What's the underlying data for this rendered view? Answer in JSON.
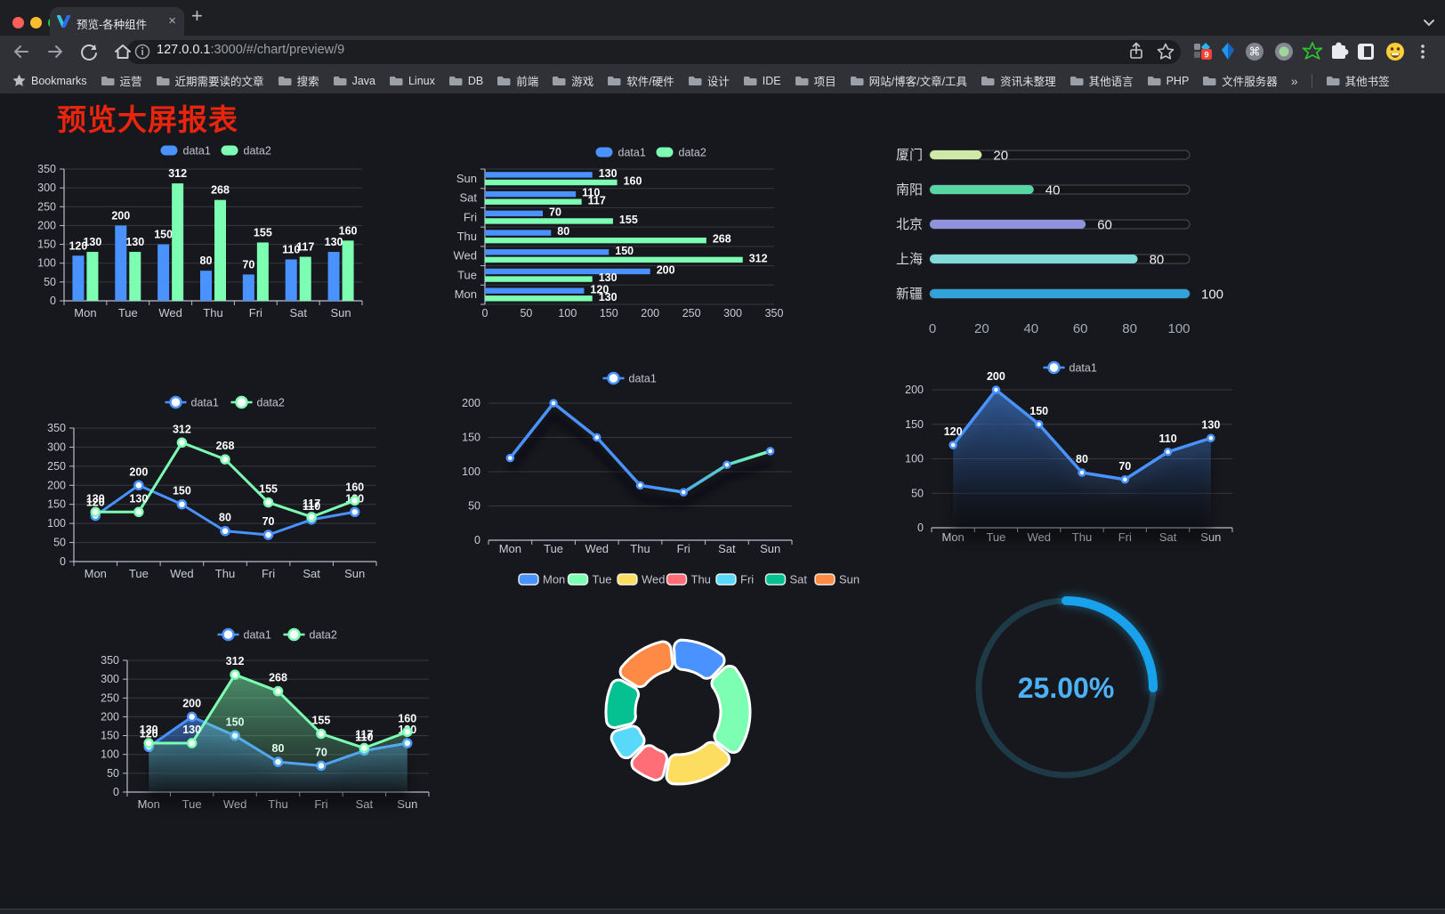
{
  "browser": {
    "tab": {
      "title": "预览-各种组件",
      "close_label": "×"
    },
    "new_tab_label": "+",
    "url": {
      "host": "127.0.0.1",
      "rest": ":3000/#/chart/preview/9"
    },
    "extension_badge": "9",
    "bookmarks_bar": {
      "star_label": "Bookmarks",
      "folders": [
        "运营",
        "近期需要读的文章",
        "搜索",
        "Java",
        "Linux",
        "DB",
        "前端",
        "游戏",
        "软件/硬件",
        "设计",
        "IDE",
        "项目",
        "网站/博客/文章/工具",
        "资讯未整理",
        "其他语言",
        "PHP",
        "文件服务器"
      ],
      "overflow": "»",
      "other": "其他书签"
    }
  },
  "page": {
    "title": "预览大屏报表",
    "title_color": "#e9250e"
  },
  "chart_data": [
    {
      "id": "grouped-bar",
      "type": "bar",
      "categories": [
        "Mon",
        "Tue",
        "Wed",
        "Thu",
        "Fri",
        "Sat",
        "Sun"
      ],
      "series": [
        {
          "name": "data1",
          "color": "#4992ff",
          "values": [
            120,
            200,
            150,
            80,
            70,
            110,
            130
          ]
        },
        {
          "name": "data2",
          "color": "#7cffb2",
          "values": [
            130,
            130,
            312,
            268,
            155,
            117,
            160
          ]
        }
      ],
      "ylim": [
        0,
        350
      ],
      "ytick": 50,
      "legend_position": "top",
      "grid": true
    },
    {
      "id": "horizontal-bar",
      "type": "bar-horizontal",
      "categories": [
        "Mon",
        "Tue",
        "Wed",
        "Thu",
        "Fri",
        "Sat",
        "Sun"
      ],
      "series": [
        {
          "name": "data1",
          "color": "#4992ff",
          "values": [
            120,
            200,
            150,
            80,
            70,
            110,
            130
          ]
        },
        {
          "name": "data2",
          "color": "#7cffb2",
          "values": [
            130,
            130,
            312,
            268,
            155,
            117,
            160
          ]
        }
      ],
      "xlim": [
        0,
        350
      ],
      "xtick": 50
    },
    {
      "id": "capsule-progress",
      "type": "bar-capsule",
      "categories": [
        "厦门",
        "南阳",
        "北京",
        "上海",
        "新疆"
      ],
      "values": [
        20,
        40,
        60,
        80,
        100
      ],
      "colors": [
        "#cde9a5",
        "#57d5a3",
        "#8f92dd",
        "#7fdcd9",
        "#30a3da"
      ],
      "xlim": [
        0,
        100
      ],
      "xticks": [
        0,
        20,
        40,
        60,
        80,
        100
      ]
    },
    {
      "id": "line-two-series",
      "type": "line",
      "categories": [
        "Mon",
        "Tue",
        "Wed",
        "Thu",
        "Fri",
        "Sat",
        "Sun"
      ],
      "series": [
        {
          "name": "data1",
          "color": "#4992ff",
          "values": [
            120,
            200,
            150,
            80,
            70,
            110,
            130
          ]
        },
        {
          "name": "data2",
          "color": "#7cffb2",
          "values": [
            130,
            130,
            312,
            268,
            155,
            117,
            160
          ]
        }
      ],
      "ylim": [
        0,
        350
      ],
      "ytick": 50,
      "labels": true
    },
    {
      "id": "gradient-line",
      "type": "line",
      "categories": [
        "Mon",
        "Tue",
        "Wed",
        "Thu",
        "Fri",
        "Sat",
        "Sun"
      ],
      "series": [
        {
          "name": "data1",
          "gradient": [
            "#4992ff",
            "#7cffb2"
          ],
          "values": [
            120,
            200,
            150,
            80,
            70,
            110,
            130
          ]
        }
      ],
      "ylim": [
        0,
        200
      ],
      "ytick": 50,
      "labels": false
    },
    {
      "id": "area-line",
      "type": "area",
      "categories": [
        "Mon",
        "Tue",
        "Wed",
        "Thu",
        "Fri",
        "Sat",
        "Sun"
      ],
      "series": [
        {
          "name": "data1",
          "color": "#4992ff",
          "values": [
            120,
            200,
            150,
            80,
            70,
            110,
            130
          ]
        }
      ],
      "ylim": [
        0,
        200
      ],
      "ytick": 50,
      "labels": true
    },
    {
      "id": "area-line-two",
      "type": "area",
      "categories": [
        "Mon",
        "Tue",
        "Wed",
        "Thu",
        "Fri",
        "Sat",
        "Sun"
      ],
      "series": [
        {
          "name": "data1",
          "color": "#4992ff",
          "values": [
            120,
            200,
            150,
            80,
            70,
            110,
            130
          ]
        },
        {
          "name": "data2",
          "color": "#7cffb2",
          "values": [
            130,
            130,
            312,
            268,
            155,
            117,
            160
          ]
        }
      ],
      "ylim": [
        0,
        350
      ],
      "ytick": 50,
      "labels": true
    },
    {
      "id": "donut",
      "type": "pie",
      "categories": [
        "Mon",
        "Tue",
        "Wed",
        "Thu",
        "Fri",
        "Sat",
        "Sun"
      ],
      "values": [
        120,
        200,
        150,
        80,
        70,
        110,
        130
      ],
      "colors": [
        "#4992ff",
        "#7cffb2",
        "#fddd60",
        "#ff6e76",
        "#58d9f9",
        "#05c091",
        "#ff8a45"
      ]
    },
    {
      "id": "gauge",
      "type": "gauge",
      "percent": 25,
      "label": "25.00%",
      "color": "#18a2ec"
    }
  ]
}
